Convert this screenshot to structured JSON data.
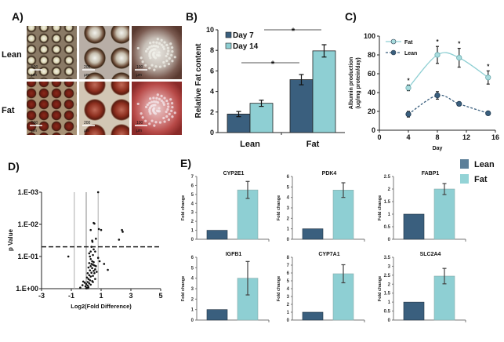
{
  "colors": {
    "lean": "#3a5f7e",
    "fat": "#8ecfd3",
    "lean_legend": "#5c7f99",
    "fat_legend": "#93d3d6"
  },
  "panel_labels": {
    "a": "A)",
    "b": "B)",
    "c": "C)",
    "d": "D)",
    "e": "E)"
  },
  "panel_a": {
    "row_labels": [
      "Lean",
      "Fat"
    ],
    "scale_bars": [
      [
        "500",
        "µm"
      ],
      [
        "200",
        "µm"
      ],
      [
        "100",
        "µm"
      ]
    ]
  },
  "chart_data": [
    {
      "id": "B",
      "type": "bar",
      "categories": [
        "Lean",
        "Fat"
      ],
      "series": [
        {
          "name": "Day 7",
          "values": [
            1.8,
            5.15
          ],
          "errors": [
            0.25,
            0.5
          ]
        },
        {
          "name": "Day 14",
          "values": [
            2.85,
            7.95
          ],
          "errors": [
            0.3,
            0.6
          ]
        }
      ],
      "ylabel": "Relative Fat content",
      "ylim": [
        0,
        10
      ],
      "yticks": [
        0,
        2,
        4,
        6,
        8,
        10
      ],
      "significance": [
        "*",
        "*"
      ],
      "legend": "top-left"
    },
    {
      "id": "C",
      "type": "line",
      "x": [
        4,
        8,
        11,
        15
      ],
      "series": [
        {
          "name": "Fat",
          "values": [
            45,
            80,
            77,
            56
          ],
          "errors": [
            3,
            9,
            10,
            7
          ],
          "style": "solid"
        },
        {
          "name": "Lean",
          "values": [
            17,
            37,
            28,
            18
          ],
          "errors": [
            3,
            4,
            2,
            1
          ],
          "style": "dashed"
        }
      ],
      "annotations": [
        "*",
        "*",
        "*",
        "*"
      ],
      "xlabel": "Day",
      "ylabel": "Albumin production (ug/mg protein/day)",
      "xlim": [
        0,
        16
      ],
      "ylim": [
        0,
        100
      ],
      "xticks": [
        0,
        4,
        8,
        12,
        16
      ],
      "yticks": [
        0,
        20,
        40,
        60,
        80,
        100
      ],
      "legend": "top-left"
    },
    {
      "id": "D",
      "type": "scatter",
      "xlabel": "Log2(Fold Difference)",
      "ylabel": "p Value",
      "xlim": [
        -3,
        5
      ],
      "ylim": [
        1,
        0.001
      ],
      "yscale": "log-reversed",
      "xticks": [
        "-3",
        "-1",
        "1",
        "3",
        "5"
      ],
      "yticks": [
        "1.E-03",
        "1.E-02",
        "1.E-01",
        "1.E+00"
      ],
      "vlines": [
        -0.8,
        0,
        0.8
      ],
      "hline_dashed": 0.05,
      "points": [
        [
          0.8,
          0.001
        ],
        [
          -1.2,
          0.1
        ],
        [
          2.2,
          0.03
        ],
        [
          2.4,
          0.015
        ],
        [
          2.45,
          0.017
        ],
        [
          1.0,
          0.015
        ],
        [
          0.85,
          0.014
        ],
        [
          0.5,
          0.009
        ],
        [
          0.55,
          0.0095
        ],
        [
          0.3,
          0.015
        ],
        [
          1.2,
          0.17
        ],
        [
          1.45,
          0.26
        ],
        [
          -0.4,
          0.93
        ],
        [
          0.4,
          0.032
        ],
        [
          0.42,
          0.035
        ],
        [
          0.65,
          0.028
        ],
        [
          0.35,
          0.05
        ],
        [
          0.5,
          0.06
        ],
        [
          0.3,
          0.07
        ],
        [
          0.6,
          0.07
        ],
        [
          0.2,
          0.08
        ],
        [
          0.45,
          0.09
        ],
        [
          0.25,
          0.1
        ],
        [
          0.8,
          0.11
        ],
        [
          0.3,
          0.12
        ],
        [
          0.4,
          0.14
        ],
        [
          0.5,
          0.15
        ],
        [
          0.9,
          0.14
        ],
        [
          0.2,
          0.16
        ],
        [
          0.35,
          0.17
        ],
        [
          0.45,
          0.18
        ],
        [
          0.55,
          0.19
        ],
        [
          0.3,
          0.2
        ],
        [
          0.15,
          0.22
        ],
        [
          0.4,
          0.23
        ],
        [
          0.6,
          0.25
        ],
        [
          0.25,
          0.27
        ],
        [
          0.5,
          0.28
        ],
        [
          0.7,
          0.3
        ],
        [
          0.35,
          0.32
        ],
        [
          0.1,
          0.33
        ],
        [
          0.55,
          0.33
        ],
        [
          0.2,
          0.38
        ],
        [
          0.45,
          0.4
        ],
        [
          0.3,
          0.42
        ],
        [
          0.05,
          0.45
        ],
        [
          0.6,
          0.5
        ],
        [
          0.15,
          0.5
        ],
        [
          0.25,
          0.55
        ],
        [
          0.4,
          0.58
        ],
        [
          0.1,
          0.62
        ],
        [
          -0.1,
          0.65
        ],
        [
          0.2,
          0.68
        ],
        [
          0.0,
          0.72
        ],
        [
          -0.2,
          0.6
        ],
        [
          0.3,
          0.75
        ],
        [
          0.1,
          0.8
        ],
        [
          -0.05,
          0.85
        ],
        [
          0.15,
          0.9
        ],
        [
          0.05,
          0.95
        ],
        [
          0.0,
          0.98
        ],
        [
          0.1,
          0.97
        ],
        [
          -0.25,
          0.78
        ],
        [
          0.45,
          0.62
        ],
        [
          0.65,
          0.2
        ]
      ]
    },
    {
      "id": "E",
      "type": "bar",
      "legend": "top-right",
      "series_names": [
        "Lean",
        "Fat"
      ],
      "ylabel": "Fold change",
      "panels": [
        {
          "title": "CYP2E1",
          "values": [
            1,
            5.5
          ],
          "fat_error": 0.95,
          "ylim": [
            0,
            7
          ],
          "yticks": [
            "0",
            "1",
            "2",
            "3",
            "4",
            "5",
            "6",
            "7"
          ]
        },
        {
          "title": "PDK4",
          "values": [
            1,
            4.7
          ],
          "fat_error": 0.7,
          "ylim": [
            0,
            6
          ],
          "yticks": [
            "0",
            "1",
            "2",
            "3",
            "4",
            "5",
            "6"
          ]
        },
        {
          "title": "FABP1",
          "values": [
            1,
            2.0
          ],
          "fat_error": 0.22,
          "ylim": [
            0,
            2.5
          ],
          "yticks": [
            "0",
            "0.5",
            "1",
            "1.5",
            "2",
            "2.5"
          ]
        },
        {
          "title": "IGFB1",
          "values": [
            1,
            4.0
          ],
          "fat_error": 1.6,
          "ylim": [
            0,
            6
          ],
          "yticks": [
            "0",
            "1",
            "2",
            "3",
            "4",
            "5",
            "6"
          ]
        },
        {
          "title": "CYP7A1",
          "values": [
            1,
            5.9
          ],
          "fat_error": 1.15,
          "ylim": [
            0,
            8
          ],
          "yticks": [
            "0",
            "1",
            "2",
            "3",
            "4",
            "5",
            "6",
            "7",
            "8"
          ]
        },
        {
          "title": "SLC2A4",
          "values": [
            1,
            2.45
          ],
          "fat_error": 0.43,
          "ylim": [
            0,
            3.5
          ],
          "yticks": [
            "0",
            "0.5",
            "1",
            "1.5",
            "2",
            "2.5",
            "3",
            "3.5"
          ]
        }
      ]
    }
  ]
}
